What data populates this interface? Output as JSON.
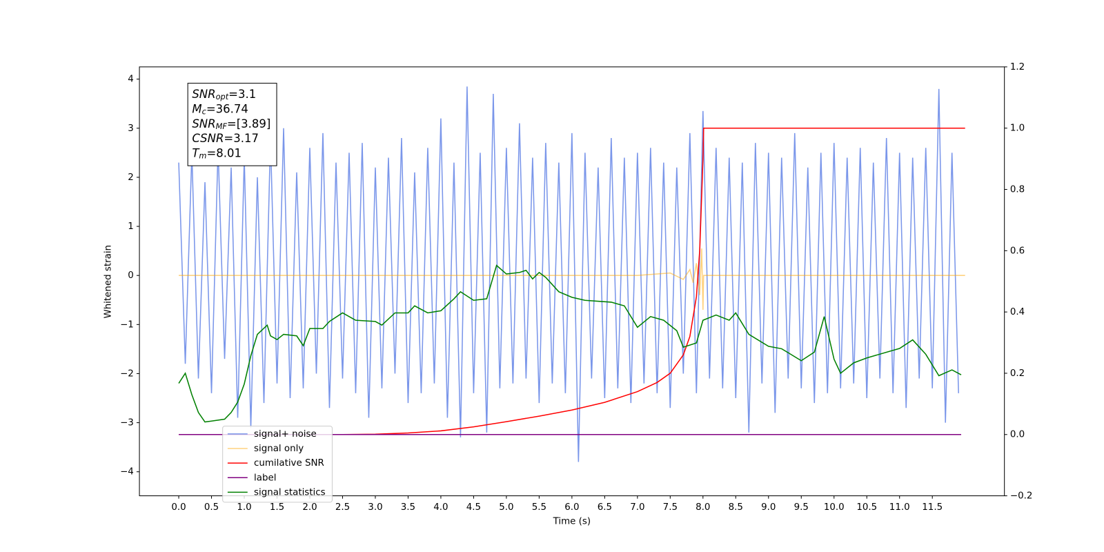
{
  "chart_data": {
    "type": "line",
    "xlabel": "Time (s)",
    "ylabel": "Whitened strain",
    "xlim": [
      -0.6,
      12.6
    ],
    "ylim": [
      -4.49,
      4.25
    ],
    "y2lim": [
      -0.2,
      1.2
    ],
    "xticks": [
      {
        "value": 0,
        "label": "0.0"
      },
      {
        "value": 0.5,
        "label": "0.5"
      },
      {
        "value": 1,
        "label": "1.0"
      },
      {
        "value": 1.5,
        "label": "1.5"
      },
      {
        "value": 2,
        "label": "2.0"
      },
      {
        "value": 2.5,
        "label": "2.5"
      },
      {
        "value": 3,
        "label": "3.0"
      },
      {
        "value": 3.5,
        "label": "3.5"
      },
      {
        "value": 4,
        "label": "4.0"
      },
      {
        "value": 4.5,
        "label": "4.5"
      },
      {
        "value": 5,
        "label": "5.0"
      },
      {
        "value": 5.5,
        "label": "5.5"
      },
      {
        "value": 6,
        "label": "6.0"
      },
      {
        "value": 6.5,
        "label": "6.5"
      },
      {
        "value": 7,
        "label": "7.0"
      },
      {
        "value": 7.5,
        "label": "7.5"
      },
      {
        "value": 8,
        "label": "8.0"
      },
      {
        "value": 8.5,
        "label": "8.5"
      },
      {
        "value": 9,
        "label": "9.0"
      },
      {
        "value": 9.5,
        "label": "9.5"
      },
      {
        "value": 10,
        "label": "10.0"
      },
      {
        "value": 10.5,
        "label": "10.5"
      },
      {
        "value": 11,
        "label": "11.0"
      },
      {
        "value": 11.5,
        "label": "11.5"
      }
    ],
    "yticks": [
      {
        "value": -4,
        "label": "−4"
      },
      {
        "value": -3,
        "label": "−3"
      },
      {
        "value": -2,
        "label": "−2"
      },
      {
        "value": -1,
        "label": "−1"
      },
      0,
      1,
      2,
      3,
      4
    ],
    "y2ticks": [
      {
        "value": -0.2,
        "label": "−0.2"
      },
      {
        "value": 0,
        "label": "0.0"
      },
      {
        "value": 0.2,
        "label": "0.2"
      },
      {
        "value": 0.4,
        "label": "0.4"
      },
      {
        "value": 0.6,
        "label": "0.6"
      },
      {
        "value": 0.8,
        "label": "0.8"
      },
      {
        "value": 1,
        "label": "1.0"
      },
      {
        "value": 1.2,
        "label": "1.2"
      }
    ],
    "legend": "lower left",
    "annotations": [
      {
        "text": "SNR",
        "sub": "opt",
        "rest": "=3.1"
      },
      {
        "text": "M",
        "sub": "c",
        "rest": "=36.74"
      },
      {
        "text": "SNR",
        "sub": "MF",
        "rest": "=[3.89]"
      },
      {
        "text": "CSNR",
        "sub": "",
        "rest": "=3.17"
      },
      {
        "text": "T",
        "sub": "m",
        "rest": "=8.01"
      }
    ],
    "series": [
      {
        "name": "signal+ noise",
        "color": "#4169e1",
        "alpha": 0.7,
        "x": [
          0,
          0.1,
          0.2,
          0.3,
          0.4,
          0.5,
          0.6,
          0.7,
          0.8,
          0.9,
          1,
          1.1,
          1.2,
          1.3,
          1.4,
          1.5,
          1.6,
          1.7,
          1.8,
          1.9,
          2,
          2.1,
          2.2,
          2.3,
          2.4,
          2.5,
          2.6,
          2.7,
          2.8,
          2.9,
          3,
          3.1,
          3.2,
          3.3,
          3.4,
          3.5,
          3.6,
          3.7,
          3.8,
          3.9,
          4,
          4.1,
          4.2,
          4.3,
          4.4,
          4.5,
          4.6,
          4.7,
          4.8,
          4.9,
          5,
          5.1,
          5.2,
          5.3,
          5.4,
          5.5,
          5.6,
          5.7,
          5.8,
          5.9,
          6,
          6.1,
          6.2,
          6.3,
          6.4,
          6.5,
          6.6,
          6.7,
          6.8,
          6.9,
          7,
          7.1,
          7.2,
          7.3,
          7.4,
          7.5,
          7.6,
          7.7,
          7.8,
          7.9,
          8,
          8.1,
          8.2,
          8.3,
          8.4,
          8.5,
          8.6,
          8.7,
          8.8,
          8.9,
          9,
          9.1,
          9.2,
          9.3,
          9.4,
          9.5,
          9.6,
          9.7,
          9.8,
          9.9,
          10,
          10.1,
          10.2,
          10.3,
          10.4,
          10.5,
          10.6,
          10.7,
          10.8,
          10.9,
          11,
          11.1,
          11.2,
          11.3,
          11.4,
          11.5,
          11.6,
          11.7,
          11.8,
          11.9
        ],
        "values": [
          2.3,
          -1.8,
          2.5,
          -2.1,
          1.9,
          -2.4,
          2.6,
          -1.7,
          2.2,
          -2.9,
          2.4,
          -3.1,
          2.0,
          -2.6,
          2.8,
          -2.2,
          3.0,
          -2.5,
          2.1,
          -2.3,
          2.6,
          -2.0,
          2.9,
          -2.7,
          2.3,
          -2.1,
          2.5,
          -2.4,
          2.7,
          -2.9,
          2.2,
          -2.3,
          2.4,
          -2.0,
          2.8,
          -2.6,
          2.1,
          -2.4,
          2.6,
          -2.2,
          3.2,
          -2.9,
          2.3,
          -3.3,
          3.85,
          -2.4,
          2.5,
          -3.2,
          3.7,
          -2.3,
          2.6,
          -2.2,
          3.1,
          -2.1,
          2.4,
          -2.6,
          2.7,
          -2.2,
          2.3,
          -2.4,
          2.9,
          -3.8,
          2.5,
          -2.1,
          2.2,
          -2.5,
          2.8,
          -2.3,
          2.4,
          -2.6,
          2.5,
          -2.2,
          2.6,
          -2.4,
          2.3,
          -2.7,
          2.2,
          -2.0,
          2.9,
          -2.4,
          3.35,
          -2.1,
          2.6,
          -2.3,
          2.4,
          -2.5,
          2.3,
          -3.2,
          2.7,
          -2.2,
          2.5,
          -2.8,
          2.4,
          -2.1,
          2.9,
          -2.3,
          2.2,
          -2.6,
          2.5,
          -2.4,
          2.7,
          -2.3,
          2.4,
          -2.2,
          2.6,
          -2.5,
          2.3,
          -2.1,
          2.8,
          -2.4,
          2.5,
          -2.7,
          2.4,
          -2.1,
          2.6,
          -2.3,
          3.8,
          -3.0,
          2.5,
          -2.4
        ]
      },
      {
        "name": "signal only",
        "color": "#ffa500",
        "alpha": 0.5,
        "x": [
          0,
          7,
          7.5,
          7.7,
          7.8,
          7.85,
          7.9,
          7.95,
          7.98,
          8.0,
          8.01,
          12
        ],
        "values": [
          0,
          0,
          0.05,
          -0.08,
          0.12,
          -0.15,
          0.25,
          -0.4,
          0.55,
          -0.7,
          0,
          0
        ]
      },
      {
        "name": "cumilative SNR",
        "color": "#ff0000",
        "alpha": 1,
        "axis": "y2",
        "x": [
          0,
          2.5,
          3,
          3.5,
          4,
          4.5,
          5,
          5.5,
          6,
          6.5,
          7,
          7.3,
          7.5,
          7.7,
          7.8,
          7.9,
          7.95,
          8.0,
          8.01,
          12.0
        ],
        "values": [
          0,
          0,
          0.001,
          0.005,
          0.012,
          0.025,
          0.042,
          0.06,
          0.08,
          0.105,
          0.14,
          0.17,
          0.2,
          0.26,
          0.32,
          0.45,
          0.6,
          0.9,
          1.0,
          1.0
        ]
      },
      {
        "name": "label",
        "color": "#800080",
        "alpha": 1,
        "axis": "y2",
        "x": [
          0,
          11.94
        ],
        "values": [
          0,
          0
        ]
      },
      {
        "name": "signal statistics",
        "color": "#008000",
        "alpha": 1,
        "axis": "y2",
        "x": [
          0,
          0.1,
          0.2,
          0.3,
          0.4,
          0.5,
          0.7,
          0.8,
          0.9,
          1.0,
          1.1,
          1.2,
          1.35,
          1.4,
          1.5,
          1.6,
          1.8,
          1.9,
          2.0,
          2.2,
          2.3,
          2.5,
          2.7,
          3.0,
          3.1,
          3.3,
          3.5,
          3.6,
          3.8,
          4.0,
          4.2,
          4.3,
          4.5,
          4.7,
          4.85,
          5.0,
          5.2,
          5.3,
          5.4,
          5.5,
          5.6,
          5.8,
          6.0,
          6.2,
          6.6,
          6.8,
          7.0,
          7.2,
          7.4,
          7.6,
          7.7,
          7.9,
          8.0,
          8.2,
          8.4,
          8.5,
          8.7,
          9.0,
          9.2,
          9.5,
          9.7,
          9.85,
          10.0,
          10.1,
          10.3,
          10.5,
          11.0,
          11.2,
          11.4,
          11.6,
          11.8,
          11.94
        ],
        "values": [
          0.167,
          0.2,
          0.13,
          0.072,
          0.041,
          0.044,
          0.05,
          0.072,
          0.106,
          0.165,
          0.257,
          0.327,
          0.357,
          0.322,
          0.31,
          0.327,
          0.322,
          0.29,
          0.346,
          0.346,
          0.369,
          0.397,
          0.373,
          0.369,
          0.357,
          0.397,
          0.397,
          0.42,
          0.397,
          0.404,
          0.443,
          0.466,
          0.438,
          0.443,
          0.552,
          0.524,
          0.529,
          0.536,
          0.508,
          0.529,
          0.513,
          0.466,
          0.448,
          0.438,
          0.432,
          0.42,
          0.35,
          0.385,
          0.373,
          0.339,
          0.285,
          0.299,
          0.373,
          0.39,
          0.373,
          0.397,
          0.327,
          0.288,
          0.28,
          0.241,
          0.269,
          0.385,
          0.246,
          0.2,
          0.234,
          0.25,
          0.281,
          0.309,
          0.262,
          0.192,
          0.211,
          0.195
        ]
      }
    ]
  }
}
